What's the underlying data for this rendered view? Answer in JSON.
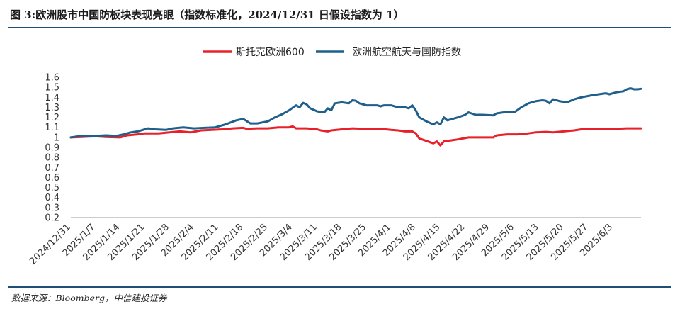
{
  "figure": {
    "title": "图 3:欧洲股市中国防板块表现亮眼（指数标准化，2024/12/31 日假设指数为 1）",
    "source": "数据来源：Bloomberg，中信建投证券"
  },
  "chart_data": {
    "type": "line",
    "ylim": [
      0.2,
      1.6
    ],
    "yticks": [
      "0.2",
      "0.3",
      "0.4",
      "0.5",
      "0.6",
      "0.7",
      "0.8",
      "0.9",
      "1",
      "1.1",
      "1.2",
      "1.3",
      "1.4",
      "1.5",
      "1.6"
    ],
    "x_tick_labels": [
      "2024/12/31",
      "2025/1/7",
      "2025/1/14",
      "2025/1/21",
      "2025/1/28",
      "2025/2/4",
      "2025/2/11",
      "2025/2/18",
      "2025/2/25",
      "2025/3/4",
      "2025/3/11",
      "2025/3/18",
      "2025/3/25",
      "2025/4/1",
      "2025/4/8",
      "2025/4/15",
      "2025/4/22",
      "2025/4/29",
      "2025/5/6",
      "2025/5/13",
      "2025/5/20",
      "2025/5/27",
      "2025/6/3"
    ],
    "x_range_days": [
      0,
      162
    ],
    "legend_position": "top-center",
    "grid": false,
    "series": [
      {
        "name": "斯托克欧洲600",
        "color": "#e8202a",
        "points": [
          [
            0,
            1.0
          ],
          [
            3,
            1.005
          ],
          [
            7,
            1.01
          ],
          [
            10,
            1.005
          ],
          [
            14,
            1.0
          ],
          [
            16,
            1.02
          ],
          [
            19,
            1.03
          ],
          [
            21,
            1.04
          ],
          [
            25,
            1.04
          ],
          [
            28,
            1.05
          ],
          [
            31,
            1.06
          ],
          [
            34,
            1.05
          ],
          [
            37,
            1.07
          ],
          [
            40,
            1.075
          ],
          [
            43,
            1.08
          ],
          [
            46,
            1.09
          ],
          [
            49,
            1.095
          ],
          [
            50,
            1.085
          ],
          [
            53,
            1.09
          ],
          [
            56,
            1.09
          ],
          [
            59,
            1.1
          ],
          [
            62,
            1.1
          ],
          [
            63,
            1.11
          ],
          [
            64,
            1.09
          ],
          [
            67,
            1.09
          ],
          [
            70,
            1.08
          ],
          [
            71,
            1.07
          ],
          [
            73,
            1.06
          ],
          [
            74,
            1.07
          ],
          [
            77,
            1.08
          ],
          [
            80,
            1.09
          ],
          [
            83,
            1.085
          ],
          [
            86,
            1.08
          ],
          [
            88,
            1.085
          ],
          [
            91,
            1.075
          ],
          [
            93,
            1.07
          ],
          [
            95,
            1.06
          ],
          [
            97,
            1.06
          ],
          [
            98,
            1.04
          ],
          [
            99,
            0.99
          ],
          [
            101,
            0.965
          ],
          [
            103,
            0.94
          ],
          [
            104,
            0.96
          ],
          [
            105,
            0.92
          ],
          [
            106,
            0.96
          ],
          [
            108,
            0.97
          ],
          [
            110,
            0.98
          ],
          [
            113,
            1.0
          ],
          [
            116,
            1.0
          ],
          [
            120,
            1.0
          ],
          [
            121,
            1.02
          ],
          [
            124,
            1.03
          ],
          [
            127,
            1.03
          ],
          [
            130,
            1.04
          ],
          [
            132,
            1.05
          ],
          [
            135,
            1.055
          ],
          [
            137,
            1.05
          ],
          [
            140,
            1.06
          ],
          [
            143,
            1.07
          ],
          [
            145,
            1.08
          ],
          [
            148,
            1.08
          ],
          [
            150,
            1.085
          ],
          [
            152,
            1.08
          ],
          [
            155,
            1.085
          ],
          [
            158,
            1.09
          ],
          [
            160,
            1.09
          ],
          [
            162,
            1.09
          ]
        ]
      },
      {
        "name": "欧洲航空航天与国防指数",
        "color": "#1f5f8b",
        "points": [
          [
            0,
            1.0
          ],
          [
            3,
            1.015
          ],
          [
            7,
            1.015
          ],
          [
            10,
            1.02
          ],
          [
            13,
            1.015
          ],
          [
            15,
            1.03
          ],
          [
            17,
            1.05
          ],
          [
            19,
            1.06
          ],
          [
            21,
            1.08
          ],
          [
            22,
            1.09
          ],
          [
            24,
            1.08
          ],
          [
            27,
            1.075
          ],
          [
            29,
            1.09
          ],
          [
            32,
            1.1
          ],
          [
            35,
            1.09
          ],
          [
            38,
            1.095
          ],
          [
            41,
            1.1
          ],
          [
            44,
            1.13
          ],
          [
            47,
            1.17
          ],
          [
            49,
            1.185
          ],
          [
            51,
            1.14
          ],
          [
            53,
            1.14
          ],
          [
            56,
            1.16
          ],
          [
            58,
            1.2
          ],
          [
            60,
            1.23
          ],
          [
            62,
            1.27
          ],
          [
            64,
            1.32
          ],
          [
            65,
            1.3
          ],
          [
            66,
            1.345
          ],
          [
            67,
            1.33
          ],
          [
            68,
            1.29
          ],
          [
            70,
            1.26
          ],
          [
            72,
            1.25
          ],
          [
            73,
            1.29
          ],
          [
            74,
            1.27
          ],
          [
            75,
            1.34
          ],
          [
            77,
            1.35
          ],
          [
            79,
            1.34
          ],
          [
            80,
            1.37
          ],
          [
            81,
            1.365
          ],
          [
            82,
            1.34
          ],
          [
            84,
            1.32
          ],
          [
            87,
            1.32
          ],
          [
            88,
            1.31
          ],
          [
            89,
            1.32
          ],
          [
            91,
            1.32
          ],
          [
            93,
            1.3
          ],
          [
            95,
            1.3
          ],
          [
            96,
            1.29
          ],
          [
            97,
            1.32
          ],
          [
            98,
            1.27
          ],
          [
            99,
            1.2
          ],
          [
            101,
            1.16
          ],
          [
            103,
            1.13
          ],
          [
            104,
            1.15
          ],
          [
            105,
            1.13
          ],
          [
            106,
            1.2
          ],
          [
            107,
            1.17
          ],
          [
            108,
            1.18
          ],
          [
            110,
            1.2
          ],
          [
            112,
            1.225
          ],
          [
            113,
            1.25
          ],
          [
            115,
            1.225
          ],
          [
            117,
            1.225
          ],
          [
            120,
            1.22
          ],
          [
            121,
            1.24
          ],
          [
            123,
            1.25
          ],
          [
            126,
            1.25
          ],
          [
            128,
            1.3
          ],
          [
            130,
            1.34
          ],
          [
            132,
            1.36
          ],
          [
            134,
            1.37
          ],
          [
            135,
            1.365
          ],
          [
            136,
            1.34
          ],
          [
            137,
            1.38
          ],
          [
            139,
            1.36
          ],
          [
            141,
            1.35
          ],
          [
            143,
            1.38
          ],
          [
            145,
            1.4
          ],
          [
            148,
            1.42
          ],
          [
            150,
            1.43
          ],
          [
            152,
            1.44
          ],
          [
            153,
            1.43
          ],
          [
            155,
            1.45
          ],
          [
            157,
            1.46
          ],
          [
            158,
            1.48
          ],
          [
            159,
            1.49
          ],
          [
            160,
            1.48
          ],
          [
            161,
            1.48
          ],
          [
            162,
            1.485
          ]
        ]
      }
    ]
  }
}
